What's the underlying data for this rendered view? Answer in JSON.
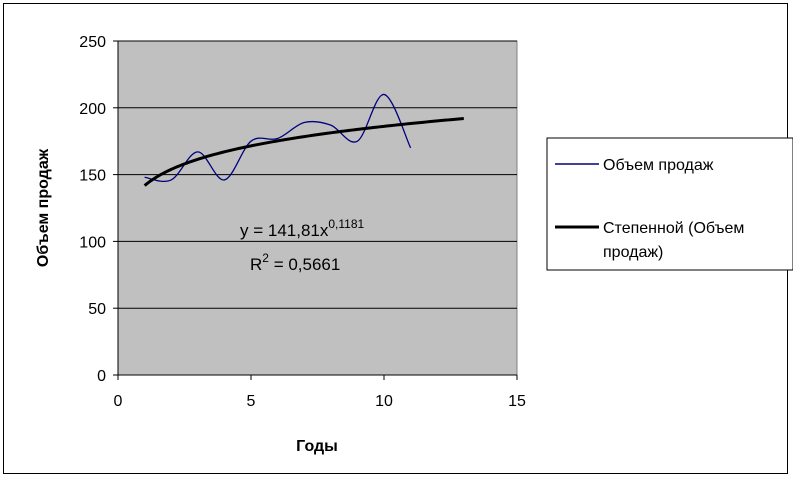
{
  "chart_data": {
    "type": "line",
    "xlabel": "Годы",
    "ylabel": "Объем продаж",
    "xlim": [
      0,
      15
    ],
    "ylim": [
      0,
      250
    ],
    "x_ticks": [
      "0",
      "5",
      "10",
      "15"
    ],
    "y_ticks": [
      "0",
      "50",
      "100",
      "150",
      "200",
      "250"
    ],
    "grid": "horizontal",
    "legend_position": "right",
    "series": [
      {
        "name": "Объем продаж",
        "color": "#000080",
        "smooth": true,
        "x": [
          1,
          2,
          3,
          4,
          5,
          6,
          7,
          8,
          9,
          10,
          11
        ],
        "y": [
          148,
          146,
          167,
          146,
          175,
          177,
          189,
          187,
          175,
          210,
          170
        ]
      },
      {
        "name": "Степенной (Объем продаж)",
        "color": "#000000",
        "trendline": "power",
        "coefficient": 141.81,
        "exponent": 0.1181,
        "x_range": [
          1,
          13
        ]
      }
    ],
    "annotations": {
      "equation_main": "y = 141,81x",
      "equation_exponent": "0,1181",
      "r2_label": "R",
      "r2_super": "2",
      "r2_value": " = 0,5661"
    },
    "legend": {
      "item1": "Объем продаж",
      "item2_line1": "Степенной (Объем",
      "item2_line2": "продаж)"
    }
  }
}
